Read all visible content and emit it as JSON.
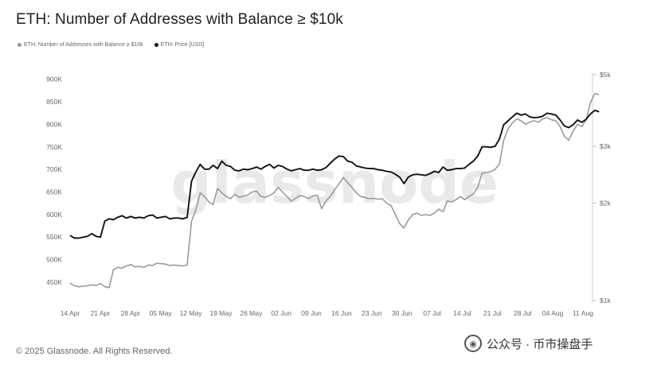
{
  "title": "ETH: Number of Addresses with Balance ≥ $10k",
  "legend": [
    {
      "label": "ETH: Number of Addresses with Balance ≥ $10k",
      "color": "#9a9a9a"
    },
    {
      "label": "ETH: Price [USD]",
      "color": "#111111"
    }
  ],
  "footer": "© 2025 Glassnode. All Rights Reserved.",
  "watermark_brand": "公众号 · 币市操盘手",
  "chart_data": {
    "type": "line",
    "background_text": "glassnode",
    "x_ticks": [
      "14 Apr",
      "21 Apr",
      "28 Apr",
      "05 May",
      "12 May",
      "19 May",
      "26 May",
      "02 Jun",
      "09 Jun",
      "16 Jun",
      "23 Jun",
      "30 Jun",
      "07 Jul",
      "14 Jul",
      "21 Jul",
      "28 Jul",
      "04 Aug",
      "11 Aug"
    ],
    "y_left": {
      "ticks": [
        "900K",
        "850K",
        "800K",
        "750K",
        "700K",
        "650K",
        "600K",
        "550K",
        "500K",
        "450K"
      ],
      "range": [
        420000,
        910000
      ]
    },
    "y_right": {
      "ticks": [
        "$5k",
        "$3k",
        "$2k",
        "$1k"
      ],
      "values": [
        5000,
        3000,
        2000,
        1000
      ],
      "scale": "log",
      "range": [
        1000,
        5000
      ]
    },
    "x_range": [
      0,
      119
    ],
    "series": [
      {
        "name": "ETH: Number of Addresses with Balance ≥ $10k",
        "axis": "left",
        "color": "#9a9a9a",
        "points": [
          [
            0,
            448000
          ],
          [
            1,
            442000
          ],
          [
            2,
            440000
          ],
          [
            3,
            441000
          ],
          [
            4,
            442000
          ],
          [
            5,
            444000
          ],
          [
            6,
            443000
          ],
          [
            7,
            447000
          ],
          [
            8,
            440000
          ],
          [
            9,
            438000
          ],
          [
            10,
            478000
          ],
          [
            11,
            483000
          ],
          [
            12,
            481000
          ],
          [
            13,
            486000
          ],
          [
            14,
            489000
          ],
          [
            15,
            484000
          ],
          [
            16,
            485000
          ],
          [
            17,
            483000
          ],
          [
            18,
            488000
          ],
          [
            19,
            487000
          ],
          [
            20,
            492000
          ],
          [
            21,
            491000
          ],
          [
            22,
            490000
          ],
          [
            23,
            487000
          ],
          [
            24,
            488000
          ],
          [
            25,
            487000
          ],
          [
            26,
            486000
          ],
          [
            27,
            488000
          ],
          [
            28,
            585000
          ],
          [
            29,
            610000
          ],
          [
            30,
            648000
          ],
          [
            31,
            640000
          ],
          [
            32,
            628000
          ],
          [
            33,
            622000
          ],
          [
            34,
            658000
          ],
          [
            35,
            648000
          ],
          [
            36,
            640000
          ],
          [
            37,
            635000
          ],
          [
            38,
            645000
          ],
          [
            39,
            638000
          ],
          [
            40,
            641000
          ],
          [
            41,
            643000
          ],
          [
            42,
            650000
          ],
          [
            43,
            652000
          ],
          [
            44,
            640000
          ],
          [
            45,
            638000
          ],
          [
            46,
            642000
          ],
          [
            47,
            648000
          ],
          [
            48,
            660000
          ],
          [
            49,
            650000
          ],
          [
            50,
            640000
          ],
          [
            51,
            630000
          ],
          [
            52,
            636000
          ],
          [
            53,
            642000
          ],
          [
            54,
            640000
          ],
          [
            55,
            635000
          ],
          [
            56,
            641000
          ],
          [
            57,
            643000
          ],
          [
            58,
            613000
          ],
          [
            59,
            630000
          ],
          [
            60,
            640000
          ],
          [
            61,
            655000
          ],
          [
            62,
            668000
          ],
          [
            63,
            682000
          ],
          [
            64,
            671000
          ],
          [
            65,
            660000
          ],
          [
            66,
            648000
          ],
          [
            67,
            640000
          ],
          [
            68,
            638000
          ],
          [
            69,
            635000
          ],
          [
            70,
            636000
          ],
          [
            71,
            634000
          ],
          [
            72,
            635000
          ],
          [
            73,
            625000
          ],
          [
            74,
            620000
          ],
          [
            75,
            600000
          ],
          [
            76,
            580000
          ],
          [
            77,
            570000
          ],
          [
            78,
            588000
          ],
          [
            79,
            600000
          ],
          [
            80,
            603000
          ],
          [
            81,
            598000
          ],
          [
            82,
            600000
          ],
          [
            83,
            598000
          ],
          [
            84,
            603000
          ],
          [
            85,
            612000
          ],
          [
            86,
            606000
          ],
          [
            87,
            630000
          ],
          [
            88,
            628000
          ],
          [
            89,
            633000
          ],
          [
            90,
            640000
          ],
          [
            91,
            633000
          ],
          [
            92,
            640000
          ],
          [
            93,
            646000
          ],
          [
            94,
            660000
          ],
          [
            95,
            692000
          ],
          [
            96,
            693000
          ],
          [
            97,
            695000
          ],
          [
            98,
            700000
          ],
          [
            99,
            712000
          ],
          [
            100,
            765000
          ],
          [
            101,
            790000
          ],
          [
            102,
            803000
          ],
          [
            103,
            812000
          ],
          [
            104,
            808000
          ],
          [
            105,
            800000
          ],
          [
            106,
            805000
          ],
          [
            107,
            808000
          ],
          [
            108,
            805000
          ],
          [
            109,
            812000
          ],
          [
            110,
            815000
          ],
          [
            111,
            810000
          ],
          [
            112,
            808000
          ],
          [
            113,
            795000
          ],
          [
            114,
            773000
          ],
          [
            115,
            765000
          ],
          [
            116,
            785000
          ],
          [
            117,
            800000
          ],
          [
            118,
            795000
          ],
          [
            119,
            810000
          ],
          [
            120,
            848000
          ],
          [
            121,
            868000
          ],
          [
            122,
            866000
          ]
        ]
      },
      {
        "name": "ETH: Price [USD]",
        "axis": "right",
        "color": "#111111",
        "points": [
          [
            0,
            1590
          ],
          [
            1,
            1560
          ],
          [
            2,
            1560
          ],
          [
            3,
            1570
          ],
          [
            4,
            1580
          ],
          [
            5,
            1610
          ],
          [
            6,
            1580
          ],
          [
            7,
            1570
          ],
          [
            8,
            1760
          ],
          [
            9,
            1790
          ],
          [
            10,
            1780
          ],
          [
            11,
            1810
          ],
          [
            12,
            1830
          ],
          [
            13,
            1800
          ],
          [
            14,
            1820
          ],
          [
            15,
            1800
          ],
          [
            16,
            1810
          ],
          [
            17,
            1800
          ],
          [
            18,
            1830
          ],
          [
            19,
            1840
          ],
          [
            20,
            1800
          ],
          [
            21,
            1810
          ],
          [
            22,
            1820
          ],
          [
            23,
            1790
          ],
          [
            24,
            1800
          ],
          [
            25,
            1800
          ],
          [
            26,
            1790
          ],
          [
            27,
            1810
          ],
          [
            28,
            2340
          ],
          [
            29,
            2500
          ],
          [
            30,
            2640
          ],
          [
            31,
            2550
          ],
          [
            32,
            2550
          ],
          [
            33,
            2620
          ],
          [
            34,
            2560
          ],
          [
            35,
            2700
          ],
          [
            36,
            2620
          ],
          [
            37,
            2600
          ],
          [
            38,
            2530
          ],
          [
            39,
            2520
          ],
          [
            40,
            2550
          ],
          [
            41,
            2540
          ],
          [
            42,
            2560
          ],
          [
            43,
            2590
          ],
          [
            44,
            2550
          ],
          [
            45,
            2600
          ],
          [
            46,
            2640
          ],
          [
            47,
            2570
          ],
          [
            48,
            2620
          ],
          [
            49,
            2600
          ],
          [
            50,
            2550
          ],
          [
            51,
            2520
          ],
          [
            52,
            2540
          ],
          [
            53,
            2560
          ],
          [
            54,
            2530
          ],
          [
            55,
            2530
          ],
          [
            56,
            2550
          ],
          [
            57,
            2530
          ],
          [
            58,
            2540
          ],
          [
            59,
            2580
          ],
          [
            60,
            2660
          ],
          [
            61,
            2740
          ],
          [
            62,
            2800
          ],
          [
            63,
            2790
          ],
          [
            64,
            2700
          ],
          [
            65,
            2680
          ],
          [
            66,
            2610
          ],
          [
            67,
            2590
          ],
          [
            68,
            2570
          ],
          [
            69,
            2560
          ],
          [
            70,
            2560
          ],
          [
            71,
            2540
          ],
          [
            72,
            2530
          ],
          [
            73,
            2510
          ],
          [
            74,
            2500
          ],
          [
            75,
            2460
          ],
          [
            76,
            2410
          ],
          [
            77,
            2300
          ],
          [
            78,
            2410
          ],
          [
            79,
            2450
          ],
          [
            80,
            2460
          ],
          [
            81,
            2450
          ],
          [
            82,
            2440
          ],
          [
            83,
            2470
          ],
          [
            84,
            2510
          ],
          [
            85,
            2490
          ],
          [
            86,
            2590
          ],
          [
            87,
            2530
          ],
          [
            88,
            2540
          ],
          [
            89,
            2560
          ],
          [
            90,
            2560
          ],
          [
            91,
            2570
          ],
          [
            92,
            2640
          ],
          [
            93,
            2700
          ],
          [
            94,
            2800
          ],
          [
            95,
            2990
          ],
          [
            96,
            2990
          ],
          [
            97,
            2980
          ],
          [
            98,
            3000
          ],
          [
            99,
            3160
          ],
          [
            100,
            3500
          ],
          [
            101,
            3600
          ],
          [
            102,
            3700
          ],
          [
            103,
            3800
          ],
          [
            104,
            3750
          ],
          [
            105,
            3780
          ],
          [
            106,
            3700
          ],
          [
            107,
            3680
          ],
          [
            108,
            3690
          ],
          [
            109,
            3720
          ],
          [
            110,
            3800
          ],
          [
            111,
            3780
          ],
          [
            112,
            3750
          ],
          [
            113,
            3620
          ],
          [
            114,
            3470
          ],
          [
            115,
            3430
          ],
          [
            116,
            3500
          ],
          [
            117,
            3620
          ],
          [
            118,
            3560
          ],
          [
            119,
            3640
          ],
          [
            120,
            3780
          ],
          [
            121,
            3880
          ],
          [
            122,
            3840
          ]
        ]
      }
    ]
  }
}
